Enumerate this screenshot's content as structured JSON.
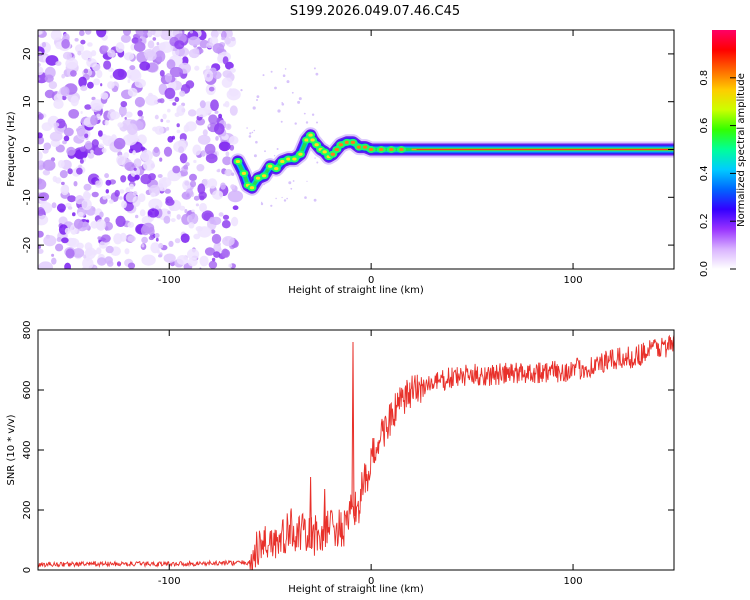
{
  "title": "S199.2026.049.07.46.C45",
  "charts": {
    "spectrogram": {
      "type": "heatmap",
      "xlabel": "Height of straight line (km)",
      "ylabel": "Frequency (Hz)",
      "xlim": [
        -165,
        150
      ],
      "ylim": [
        -25,
        25
      ],
      "xticks": [
        -100,
        0,
        100
      ],
      "xtick_labels": [
        "-100",
        "0",
        "100"
      ],
      "yticks": [
        -20,
        -10,
        0,
        10,
        20
      ],
      "ytick_labels": [
        "-20",
        "-10",
        "0",
        "10",
        "20"
      ],
      "noise_region": [
        -165,
        -67
      ],
      "ridge": {
        "x": [
          -66,
          -63,
          -61,
          -59,
          -56,
          -53,
          -50,
          -47,
          -44,
          -41,
          -38,
          -35,
          -32,
          -30,
          -29,
          -27,
          -25,
          -23,
          -21,
          -19,
          -17,
          -15,
          -12,
          -9,
          -6,
          -3,
          0,
          5,
          10,
          15,
          20,
          150
        ],
        "y": [
          -2.5,
          -5,
          -7.5,
          -8,
          -6,
          -5.5,
          -3.5,
          -4,
          -2.5,
          -2,
          -2,
          -1,
          2,
          3,
          2,
          1,
          0,
          -0.5,
          -1.5,
          -1,
          0,
          1,
          1.5,
          1.5,
          0.5,
          0.5,
          0,
          0,
          0,
          0,
          0,
          0
        ]
      }
    },
    "colorbar": {
      "label": "Normalized spectral amplitude",
      "ticks": [
        0.0,
        0.2,
        0.4,
        0.6,
        0.8
      ],
      "tick_labels": [
        "0.0",
        "0.2",
        "0.4",
        "0.6",
        "0.8"
      ],
      "range": [
        0,
        1
      ],
      "colors": [
        "#ffffff",
        "#d9b3ff",
        "#9933ff",
        "#3300ff",
        "#0066ff",
        "#00ccff",
        "#00ff99",
        "#33ff00",
        "#ccff00",
        "#ffcc00",
        "#ff6600",
        "#ff0000",
        "#ff0066"
      ]
    },
    "snr": {
      "type": "line",
      "xlabel": "Height of straight line (km)",
      "ylabel": "SNR (10 * v/v)",
      "xlim": [
        -165,
        150
      ],
      "ylim": [
        0,
        800
      ],
      "xticks": [
        -100,
        0,
        100
      ],
      "xtick_labels": [
        "-100",
        "0",
        "100"
      ],
      "yticks": [
        0,
        200,
        400,
        600,
        800
      ],
      "ytick_labels": [
        "0",
        "200",
        "400",
        "600",
        "800"
      ],
      "line_color": "#e8302a",
      "series": [
        {
          "name": "SNR",
          "x": [
            -165,
            -140,
            -110,
            -80,
            -60,
            -55,
            -50,
            -45,
            -40,
            -35,
            -30,
            -25,
            -20,
            -15,
            -11,
            -9,
            -7,
            -5,
            -2,
            0,
            5,
            10,
            15,
            20,
            25,
            30,
            40,
            50,
            60,
            70,
            80,
            90,
            100,
            110,
            120,
            130,
            140,
            150
          ],
          "y": [
            18,
            20,
            20,
            22,
            25,
            80,
            100,
            90,
            140,
            120,
            110,
            120,
            150,
            130,
            150,
            220,
            200,
            250,
            310,
            370,
            450,
            510,
            560,
            590,
            610,
            620,
            640,
            650,
            650,
            655,
            660,
            660,
            665,
            680,
            700,
            710,
            740,
            750
          ]
        }
      ],
      "spikes": [
        {
          "x": -9,
          "y": 760
        },
        {
          "x": -30,
          "y": 310
        },
        {
          "x": -23,
          "y": 270
        }
      ]
    }
  }
}
